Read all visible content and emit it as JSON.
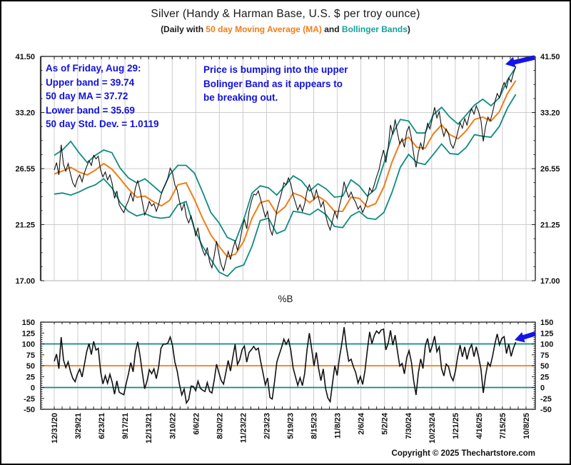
{
  "title": "Silver (Handy & Harman Base, U.S. $ per troy ounce)",
  "subtitle": {
    "prefix": "(Daily with ",
    "ma_label": "50 day Moving Average (MA)",
    "and": " and ",
    "bb_label": "Bollinger Bands",
    "suffix": ")"
  },
  "annotations": {
    "stats": [
      "As of Friday, Aug 29:",
      "Upper band = 39.74",
      "50 day MA = 37.72",
      "Lower band = 35.69",
      "50 day Std. Dev. = 1.0119"
    ],
    "callout": [
      "Price is bumping into the upper",
      "Bolinger Band as it appears to",
      "be breaking out."
    ]
  },
  "copyright": "Copyright © 2025 Thechartstore.com",
  "colors": {
    "price": "#111111",
    "ma": "#f07d18",
    "bands": "#0d8b80",
    "annotation_blue": "#1111dd",
    "arrow_blue": "#1414e8",
    "grid": "#cccccc",
    "frame_dark": "#3a3a3a",
    "frame_light": "#c0c0c0"
  },
  "chart_data": [
    {
      "type": "line",
      "title": "Silver (Handy & Harman Base, U.S. $ per troy ounce)",
      "subtitle": "(Daily with 50 day Moving Average (MA) and Bollinger Bands)",
      "yscale": "log",
      "ylim": [
        17.0,
        41.5
      ],
      "yticks": [
        41.5,
        33.2,
        26.55,
        21.25,
        17.0
      ],
      "grid": true,
      "legend_position": "none",
      "xticks": [
        "12/31/20",
        "3/29/21",
        "6/23/21",
        "9/17/21",
        "12/13/21",
        "3/10/22",
        "6/6/22",
        "8/30/22",
        "11/23/22",
        "2/23/23",
        "5/19/23",
        "8/15/23",
        "11/8/23",
        "2/6/24",
        "5/2/24",
        "7/30/24",
        "10/23/24",
        "1/21/25",
        "4/16/25",
        "7/15/25",
        "10/8/25"
      ],
      "x_data_range": [
        "12/31/20",
        "8/29/25"
      ],
      "months_span": 56,
      "series": [
        {
          "name": "price",
          "color": "#111111",
          "sampling": "evenly spaced 12/31/20 to 8/29/25",
          "values": [
            26.4,
            27.2,
            25.9,
            29.2,
            27.0,
            26.3,
            27.1,
            26.0,
            25.1,
            24.7,
            25.5,
            25.9,
            25.2,
            26.1,
            26.8,
            27.4,
            26.9,
            28.0,
            27.6,
            27.9,
            26.4,
            25.7,
            26.2,
            25.4,
            25.9,
            25.0,
            23.6,
            24.3,
            23.0,
            22.6,
            22.3,
            22.9,
            23.4,
            24.1,
            23.3,
            24.6,
            25.3,
            24.4,
            23.2,
            22.1,
            22.6,
            23.3,
            22.9,
            23.1,
            22.4,
            23.0,
            23.9,
            24.5,
            25.0,
            25.6,
            26.6,
            26.1,
            24.9,
            24.4,
            23.3,
            22.5,
            23.1,
            21.9,
            21.4,
            22.0,
            21.3,
            20.3,
            21.0,
            19.8,
            19.2,
            18.8,
            19.4,
            18.3,
            17.9,
            18.8,
            19.9,
            18.9,
            18.1,
            17.7,
            18.4,
            19.1,
            18.5,
            19.3,
            19.9,
            19.2,
            19.8,
            20.9,
            21.7,
            20.9,
            22.4,
            23.3,
            24.0,
            23.9,
            24.3,
            23.5,
            22.7,
            21.9,
            22.4,
            20.9,
            20.4,
            21.3,
            22.5,
            23.3,
            24.1,
            25.1,
            24.9,
            25.6,
            25.0,
            23.9,
            23.2,
            22.5,
            23.0,
            22.4,
            23.1,
            24.3,
            24.9,
            24.2,
            23.5,
            24.4,
            23.6,
            22.8,
            23.3,
            22.1,
            21.3,
            20.8,
            21.6,
            22.4,
            21.8,
            22.9,
            23.8,
            25.2,
            24.3,
            23.7,
            24.2,
            23.6,
            23.2,
            22.6,
            22.9,
            22.3,
            22.8,
            23.5,
            24.6,
            24.2,
            24.9,
            25.7,
            26.4,
            27.6,
            28.6,
            27.2,
            28.9,
            31.6,
            30.4,
            32.3,
            30.6,
            29.3,
            29.9,
            28.9,
            30.8,
            31.4,
            30.0,
            28.1,
            26.7,
            28.3,
            29.4,
            28.6,
            30.5,
            31.8,
            31.1,
            32.4,
            33.9,
            32.5,
            33.3,
            31.3,
            30.2,
            31.1,
            30.5,
            29.3,
            28.8,
            29.6,
            30.7,
            31.9,
            31.2,
            32.4,
            31.6,
            32.9,
            33.7,
            33.0,
            34.1,
            33.3,
            32.2,
            29.6,
            31.4,
            32.6,
            32.1,
            33.2,
            34.6,
            35.8,
            35.2,
            36.5,
            37.4,
            36.6,
            38.1,
            37.5,
            38.8,
            39.9
          ]
        },
        {
          "name": "ma50",
          "color": "#f07d18",
          "sampling": "monthly Dec-2020 .. Aug-2025",
          "values": [
            26.0,
            26.3,
            26.7,
            26.2,
            25.9,
            26.4,
            27.1,
            26.5,
            25.5,
            24.5,
            23.7,
            23.8,
            23.3,
            22.9,
            23.4,
            24.9,
            25.1,
            23.5,
            21.8,
            20.4,
            19.5,
            18.7,
            18.9,
            19.9,
            21.8,
            23.2,
            23.4,
            22.2,
            22.8,
            24.1,
            23.8,
            23.2,
            23.8,
            23.3,
            22.4,
            22.4,
            23.7,
            23.6,
            22.8,
            23.1,
            24.7,
            27.3,
            29.5,
            30.1,
            28.9,
            28.8,
            30.5,
            31.6,
            30.4,
            29.9,
            30.9,
            32.3,
            32.6,
            32.1,
            33.3,
            35.8,
            37.7
          ]
        },
        {
          "name": "upper_band",
          "color": "#0d8b80",
          "sampling": "monthly Dec-2020 .. Aug-2025",
          "values": [
            28.0,
            28.6,
            29.6,
            28.3,
            27.2,
            28.0,
            28.6,
            28.3,
            26.6,
            25.6,
            25.1,
            25.5,
            24.8,
            24.1,
            25.9,
            26.9,
            26.9,
            26.1,
            24.2,
            22.3,
            21.4,
            20.2,
            19.9,
            21.7,
            24.1,
            24.8,
            24.6,
            23.9,
            24.8,
            25.8,
            25.3,
            24.3,
            25.0,
            24.5,
            23.7,
            23.8,
            25.4,
            24.8,
            23.8,
            24.5,
            27.1,
            30.4,
            32.3,
            32.1,
            30.6,
            30.6,
            32.9,
            33.9,
            32.6,
            31.7,
            32.9,
            34.2,
            35.0,
            34.1,
            35.2,
            37.8,
            39.74
          ]
        },
        {
          "name": "lower_band",
          "color": "#0d8b80",
          "sampling": "monthly Dec-2020 .. Aug-2025",
          "values": [
            24.0,
            24.1,
            23.9,
            24.2,
            24.6,
            24.9,
            25.5,
            24.6,
            23.2,
            22.4,
            22.0,
            22.2,
            21.9,
            21.8,
            21.9,
            23.0,
            23.3,
            20.9,
            19.5,
            18.5,
            17.6,
            17.3,
            17.9,
            18.1,
            19.5,
            21.6,
            21.8,
            20.5,
            20.8,
            22.4,
            22.3,
            22.1,
            22.6,
            22.1,
            21.1,
            21.0,
            22.0,
            22.4,
            21.8,
            21.7,
            22.3,
            24.2,
            26.7,
            28.1,
            27.2,
            27.0,
            28.1,
            29.3,
            28.2,
            28.1,
            28.9,
            30.4,
            30.2,
            30.1,
            31.4,
            33.8,
            35.69
          ]
        }
      ],
      "latest_stats": {
        "as_of": "Friday, Aug 29",
        "upper_band": 39.74,
        "ma50": 37.72,
        "lower_band": 35.69,
        "std_dev_50d": 1.0119
      }
    },
    {
      "type": "line",
      "title": "%B",
      "ylim": [
        -50,
        150
      ],
      "yticks": [
        150,
        125,
        100,
        75,
        50,
        25,
        0,
        -25,
        -50
      ],
      "grid": true,
      "reference_lines": [
        {
          "value": 100,
          "color": "#0d8b80"
        },
        {
          "value": 50,
          "color": "#f07d18"
        },
        {
          "value": 0,
          "color": "#0d8b80"
        }
      ],
      "series": [
        {
          "name": "%B",
          "color": "#111111",
          "derived": "100 * (price - lower_band) / (upper_band - lower_band), computed from main chart series"
        }
      ]
    }
  ]
}
